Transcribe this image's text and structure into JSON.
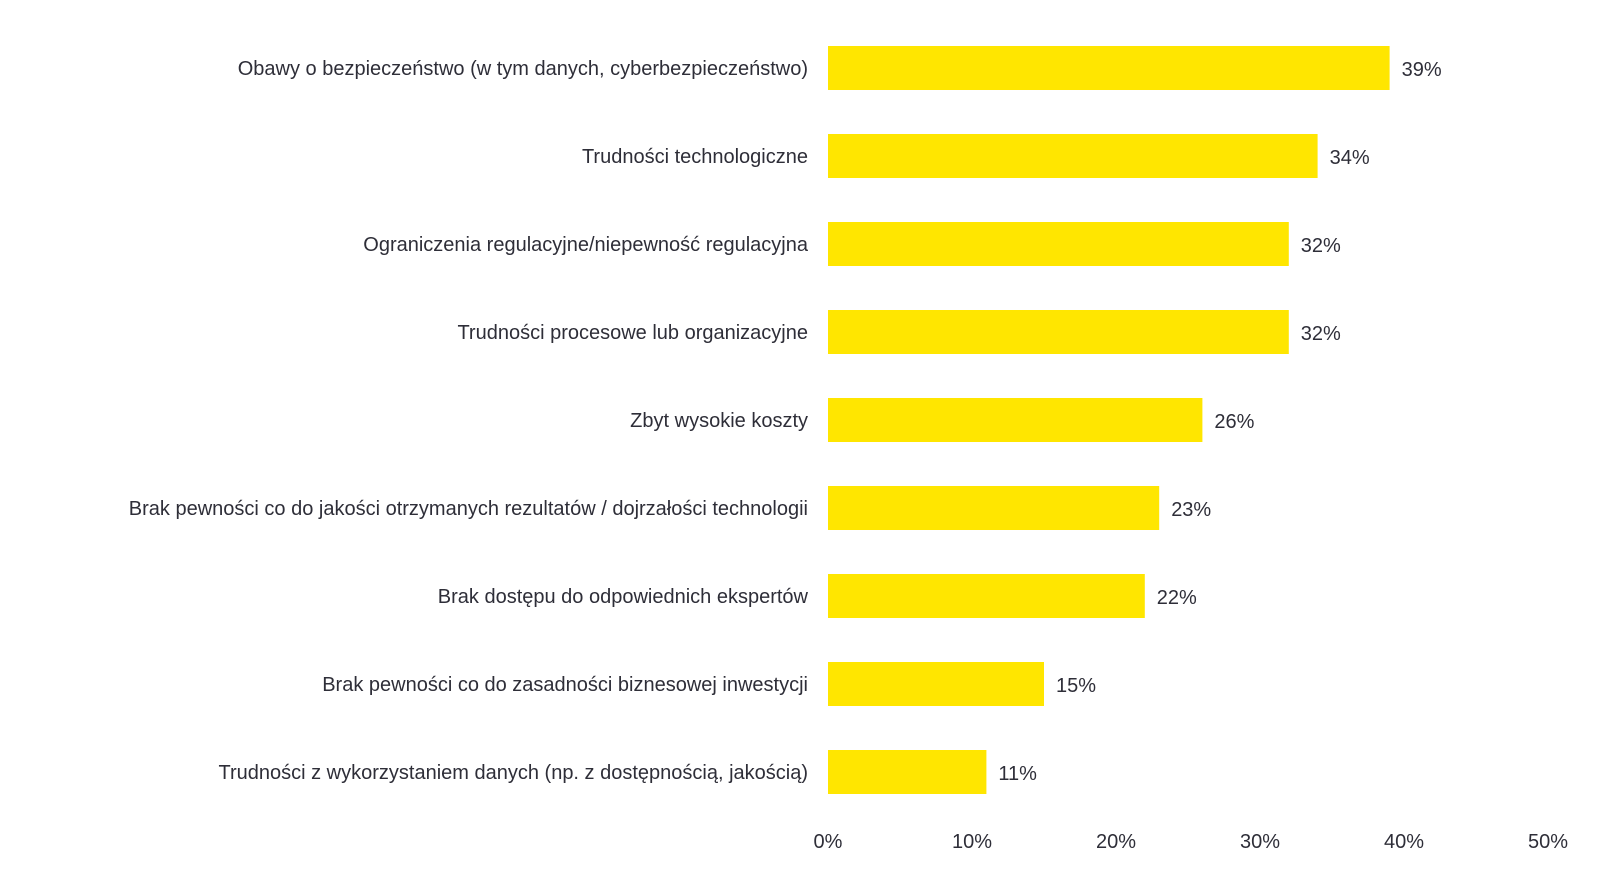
{
  "chart_data": {
    "type": "bar",
    "orientation": "horizontal",
    "title": "",
    "xlabel": "",
    "ylabel": "",
    "categories": [
      "Obawy o bezpieczeństwo (w tym danych, cyberbezpieczeństwo)",
      "Trudności technologiczne",
      "Ograniczenia regulacyjne/niepewność regulacyjna",
      "Trudności procesowe lub organizacyjne",
      "Zbyt wysokie koszty",
      "Brak pewności co do jakości otrzymanych rezultatów / dojrzałości technologii",
      "Brak dostępu do odpowiednich ekspertów",
      "Brak pewności co do zasadności biznesowej inwestycji",
      "Trudności z wykorzystaniem danych (np. z dostępnością, jakością)"
    ],
    "values": [
      39,
      34,
      32,
      32,
      26,
      23,
      22,
      15,
      11
    ],
    "value_labels": [
      "39%",
      "34%",
      "32%",
      "32%",
      "26%",
      "23%",
      "22%",
      "15%",
      "11%"
    ],
    "xlim": [
      0,
      50
    ],
    "x_ticks": [
      0,
      10,
      20,
      30,
      40,
      50
    ],
    "x_tick_labels": [
      "0%",
      "10%",
      "20%",
      "30%",
      "40%",
      "50%"
    ],
    "grid": false,
    "legend": "none",
    "bar_color": "#ffe600",
    "text_color": "#2e2e38"
  }
}
